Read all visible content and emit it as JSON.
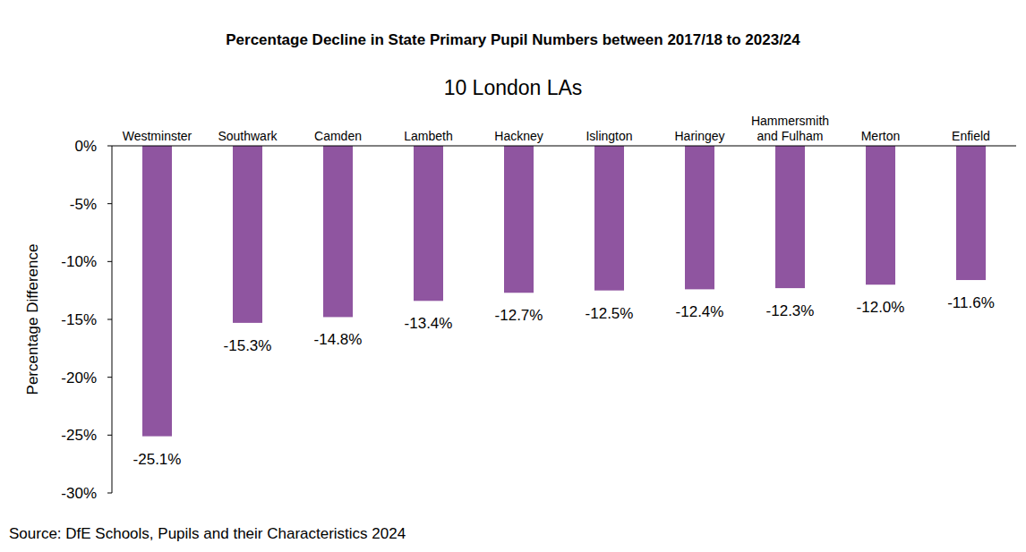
{
  "chart_data": {
    "type": "bar",
    "title": "Percentage Decline in State Primary Pupil Numbers between 2017/18 to 2023/24",
    "subtitle": "10 London LAs",
    "y_label": "Percentage Difference",
    "source": "Source: DfE Schools, Pupils and their Characteristics 2024",
    "categories": [
      "Westminster",
      "Southwark",
      "Camden",
      "Lambeth",
      "Hackney",
      "Islington",
      "Haringey",
      "Hammersmith and Fulham",
      "Merton",
      "Enfield"
    ],
    "values": [
      -25.1,
      -15.3,
      -14.8,
      -13.4,
      -12.7,
      -12.5,
      -12.4,
      -12.3,
      -12.0,
      -11.6
    ],
    "value_labels": [
      "-25.1%",
      "-15.3%",
      "-14.8%",
      "-13.4%",
      "-12.7%",
      "-12.5%",
      "-12.4%",
      "-12.3%",
      "-12.0%",
      "-11.6%"
    ],
    "color": "#8f55a0",
    "ylim": [
      -30,
      0
    ],
    "yticks": [
      {
        "value": 0,
        "label": "0%"
      },
      {
        "value": -5,
        "label": "-5%"
      },
      {
        "value": -10,
        "label": "-10%"
      },
      {
        "value": -15,
        "label": "-15%"
      },
      {
        "value": -20,
        "label": "-20%"
      },
      {
        "value": -25,
        "label": "-25%"
      },
      {
        "value": -30,
        "label": "-30%"
      }
    ],
    "grid": false,
    "data_labels": true
  }
}
